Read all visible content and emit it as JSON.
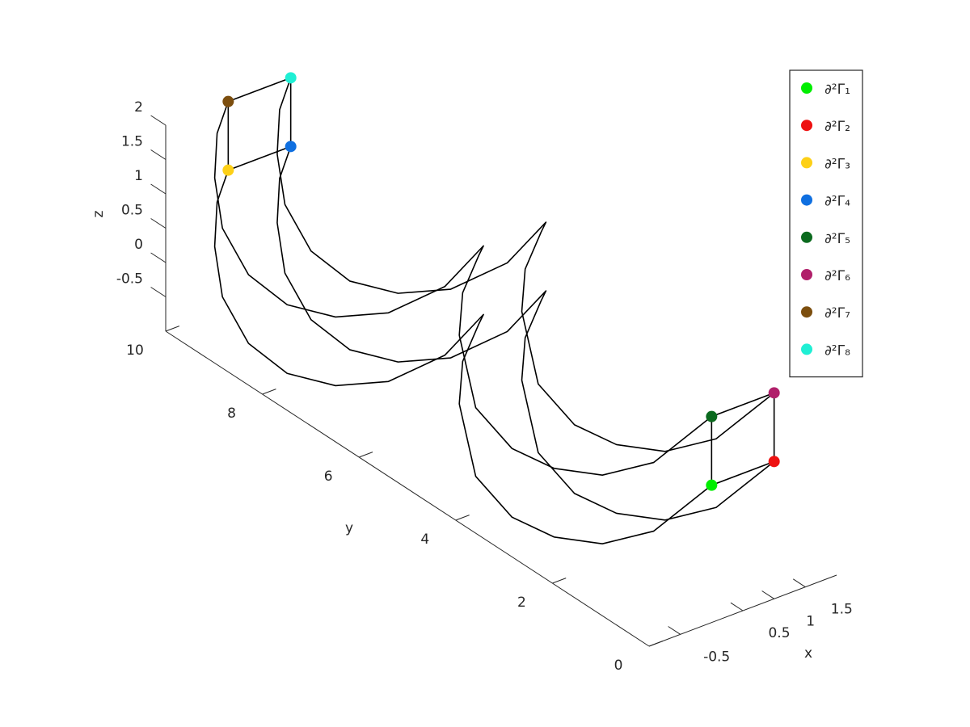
{
  "chart_data": {
    "type": "line3d",
    "xlabel": "x",
    "ylabel": "y",
    "zlabel": "z",
    "xlim": [
      -1,
      2
    ],
    "ylim": [
      0,
      10
    ],
    "zlim": [
      -1,
      2
    ],
    "xticks": [
      -0.5,
      0.5,
      1,
      1.5
    ],
    "yticks": [
      0,
      2,
      4,
      6,
      8,
      10
    ],
    "zticks": [
      -0.5,
      0,
      0.5,
      1,
      1.5,
      2
    ],
    "legend": "northeast",
    "lines": [
      {
        "color": "#000000",
        "x": [
          0,
          0,
          0,
          0,
          0,
          0,
          0,
          0,
          0,
          0,
          0,
          0,
          0,
          0,
          0,
          0,
          0,
          0,
          0
        ],
        "y": [
          10,
          10.23,
          10.28,
          10.12,
          9.58,
          8.78,
          7.78,
          6.69,
          5.52,
          4.72,
          4.82,
          5.15,
          5.22,
          4.88,
          4.13,
          3.26,
          2.26,
          1.2,
          0
        ],
        "z": [
          1,
          0.43,
          -0.24,
          -0.9,
          -1.33,
          -1.4,
          -1.12,
          -0.56,
          0.36,
          1.32,
          1.13,
          0.44,
          -0.21,
          -1.11,
          -1.36,
          -1.25,
          -0.89,
          -0.22,
          1
        ]
      },
      {
        "color": "#000000",
        "x": [
          1,
          1,
          1,
          1,
          1,
          1,
          1,
          1,
          1,
          1,
          1,
          1,
          1,
          1,
          1,
          1,
          1,
          1,
          1
        ],
        "y": [
          10,
          10.23,
          10.28,
          10.12,
          9.58,
          8.78,
          7.78,
          6.69,
          5.52,
          4.72,
          4.82,
          5.15,
          5.22,
          4.88,
          4.13,
          3.26,
          2.26,
          1.2,
          0
        ],
        "z": [
          1,
          0.43,
          -0.24,
          -0.9,
          -1.33,
          -1.4,
          -1.12,
          -0.56,
          0.36,
          1.32,
          1.13,
          0.44,
          -0.21,
          -1.11,
          -1.36,
          -1.25,
          -0.89,
          -0.22,
          1
        ]
      },
      {
        "color": "#000000",
        "x": [
          0,
          0,
          0,
          0,
          0,
          0,
          0,
          0,
          0,
          0,
          0,
          0,
          0,
          0,
          0,
          0,
          0,
          0,
          0
        ],
        "y": [
          10,
          10.23,
          10.28,
          10.12,
          9.58,
          8.78,
          7.78,
          6.69,
          5.52,
          4.72,
          4.82,
          5.15,
          5.22,
          4.88,
          4.13,
          3.26,
          2.26,
          1.2,
          0
        ],
        "z": [
          2,
          1.43,
          0.76,
          0.1,
          -0.33,
          -0.4,
          -0.12,
          0.44,
          1.36,
          2.32,
          2.13,
          1.44,
          0.79,
          -0.11,
          -0.36,
          -0.25,
          0.11,
          0.78,
          2
        ]
      },
      {
        "color": "#000000",
        "x": [
          1,
          1,
          1,
          1,
          1,
          1,
          1,
          1,
          1,
          1,
          1,
          1,
          1,
          1,
          1,
          1,
          1,
          1,
          1
        ],
        "y": [
          10,
          10.23,
          10.28,
          10.12,
          9.58,
          8.78,
          7.78,
          6.69,
          5.52,
          4.72,
          4.82,
          5.15,
          5.22,
          4.88,
          4.13,
          3.26,
          2.26,
          1.2,
          0
        ],
        "z": [
          2,
          1.43,
          0.76,
          0.1,
          -0.33,
          -0.4,
          -0.12,
          0.44,
          1.36,
          2.32,
          2.13,
          1.44,
          0.79,
          -0.11,
          -0.36,
          -0.25,
          0.11,
          0.78,
          2
        ]
      },
      {
        "color": "#000000",
        "x": [
          0,
          1,
          1,
          0,
          0
        ],
        "y": [
          10,
          10,
          10,
          10,
          10
        ],
        "z": [
          1,
          1,
          2,
          2,
          1
        ]
      },
      {
        "color": "#000000",
        "x": [
          0,
          1,
          1,
          0,
          0
        ],
        "y": [
          0,
          0,
          0,
          0,
          0
        ],
        "z": [
          1,
          1,
          2,
          2,
          1
        ]
      }
    ],
    "points": [
      {
        "name": "∂²Γ₁",
        "color": "#00ee00",
        "x": 0,
        "y": 0,
        "z": 1
      },
      {
        "name": "∂²Γ₂",
        "color": "#ee1111",
        "x": 1,
        "y": 0,
        "z": 1
      },
      {
        "name": "∂²Γ₃",
        "color": "#fdd017",
        "x": 0,
        "y": 10,
        "z": 1
      },
      {
        "name": "∂²Γ₄",
        "color": "#0f6fe0",
        "x": 1,
        "y": 10,
        "z": 1
      },
      {
        "name": "∂²Γ₅",
        "color": "#0b6a1e",
        "x": 0,
        "y": 0,
        "z": 2
      },
      {
        "name": "∂²Γ₆",
        "color": "#b01f6a",
        "x": 1,
        "y": 0,
        "z": 2
      },
      {
        "name": "∂²Γ₇",
        "color": "#7c4e0e",
        "x": 0,
        "y": 10,
        "z": 2
      },
      {
        "name": "∂²Γ₈",
        "color": "#1fefd4",
        "x": 1,
        "y": 10,
        "z": 2
      }
    ]
  }
}
